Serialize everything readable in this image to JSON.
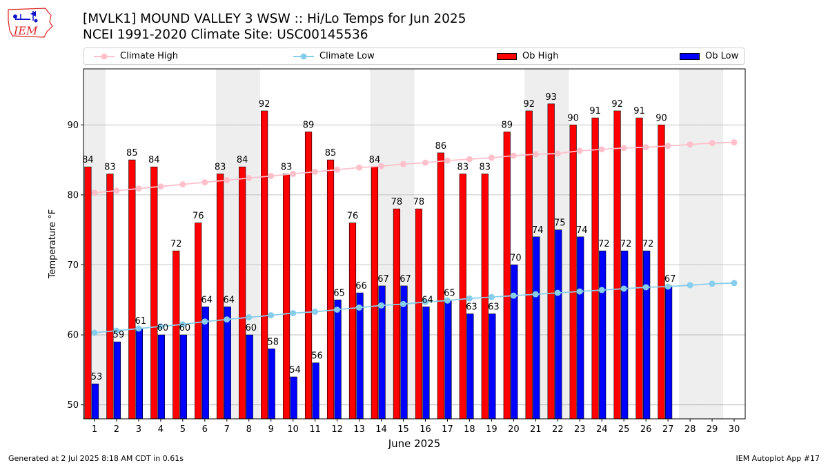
{
  "logo": {
    "text": "IEM"
  },
  "header": {
    "title_line1": "[MVLK1] MOUND VALLEY 3 WSW :: Hi/Lo Temps for Jun 2025",
    "title_line2": "NCEI 1991-2020 Climate Site: USC00145536"
  },
  "legend": {
    "climate_high": "Climate High",
    "climate_low": "Climate Low",
    "ob_high": "Ob High",
    "ob_low": "Ob Low"
  },
  "footer": {
    "left": "Generated at 2 Jul 2025 8:18 AM CDT in 0.61s",
    "right": "IEM Autoplot App #17"
  },
  "colors": {
    "ob_high": "#ff0000",
    "ob_low": "#0000ff",
    "climate_high": "#ffc0cb",
    "climate_low": "#87ceeb",
    "weekend_shade": "#eeeeee",
    "grid": "#b0b0b0"
  },
  "chart_data": {
    "type": "bar",
    "title": "[MVLK1] MOUND VALLEY 3 WSW :: Hi/Lo Temps for Jun 2025",
    "subtitle": "NCEI 1991-2020 Climate Site: USC00145536",
    "xlabel": "June 2025",
    "ylabel": "Temperature °F",
    "ylim": [
      48,
      98
    ],
    "yticks": [
      50,
      60,
      70,
      80,
      90
    ],
    "xlim": [
      0.5,
      30.5
    ],
    "grid": "horizontal",
    "legend_position": "top",
    "categories": [
      1,
      2,
      3,
      4,
      5,
      6,
      7,
      8,
      9,
      10,
      11,
      12,
      13,
      14,
      15,
      16,
      17,
      18,
      19,
      20,
      21,
      22,
      23,
      24,
      25,
      26,
      27,
      28,
      29,
      30
    ],
    "shaded_days": [
      1,
      7,
      8,
      14,
      15,
      21,
      22,
      28,
      29
    ],
    "series": [
      {
        "name": "Ob High",
        "type": "bar",
        "values": [
          84,
          83,
          85,
          84,
          72,
          76,
          83,
          84,
          92,
          83,
          89,
          85,
          76,
          84,
          78,
          78,
          86,
          83,
          83,
          89,
          92,
          93,
          90,
          91,
          92,
          91,
          90,
          null,
          null,
          null
        ]
      },
      {
        "name": "Ob Low",
        "type": "bar",
        "values": [
          53,
          59,
          61,
          60,
          60,
          64,
          64,
          60,
          58,
          54,
          56,
          65,
          66,
          67,
          67,
          64,
          65,
          63,
          63,
          70,
          74,
          75,
          74,
          72,
          72,
          72,
          67,
          null,
          null,
          null
        ]
      },
      {
        "name": "Climate High",
        "type": "line",
        "values": [
          80.3,
          80.6,
          80.9,
          81.2,
          81.5,
          81.8,
          82.1,
          82.4,
          82.7,
          83.0,
          83.3,
          83.6,
          83.9,
          84.1,
          84.4,
          84.6,
          84.9,
          85.1,
          85.3,
          85.6,
          85.8,
          85.9,
          86.3,
          86.5,
          86.7,
          86.8,
          87.0,
          87.2,
          87.4,
          87.5
        ]
      },
      {
        "name": "Climate Low",
        "type": "line",
        "values": [
          60.3,
          60.6,
          60.9,
          61.2,
          61.5,
          61.9,
          62.2,
          62.5,
          62.8,
          63.1,
          63.3,
          63.6,
          63.9,
          64.2,
          64.4,
          64.7,
          64.9,
          65.2,
          65.4,
          65.6,
          65.8,
          66.0,
          66.2,
          66.4,
          66.6,
          66.8,
          66.9,
          67.1,
          67.3,
          67.4
        ]
      }
    ]
  }
}
